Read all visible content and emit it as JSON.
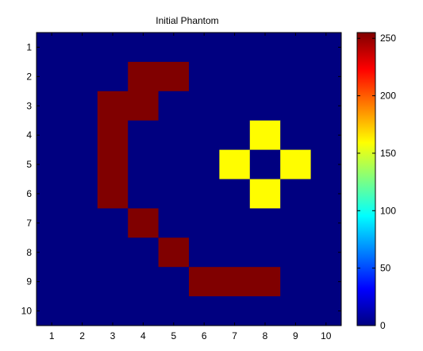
{
  "chart_data": {
    "type": "heatmap",
    "title": "Initial Phantom",
    "x": [
      1,
      2,
      3,
      4,
      5,
      6,
      7,
      8,
      9,
      10
    ],
    "y": [
      1,
      2,
      3,
      4,
      5,
      6,
      7,
      8,
      9,
      10
    ],
    "x_tick_labels": [
      "1",
      "2",
      "3",
      "4",
      "5",
      "6",
      "7",
      "8",
      "9",
      "10"
    ],
    "y_tick_labels": [
      "1",
      "2",
      "3",
      "4",
      "5",
      "6",
      "7",
      "8",
      "9",
      "10"
    ],
    "values": [
      [
        0,
        0,
        0,
        0,
        0,
        0,
        0,
        0,
        0,
        0
      ],
      [
        0,
        0,
        0,
        255,
        255,
        0,
        0,
        0,
        0,
        0
      ],
      [
        0,
        0,
        255,
        255,
        0,
        0,
        0,
        0,
        0,
        0
      ],
      [
        0,
        0,
        255,
        0,
        0,
        0,
        0,
        160,
        0,
        0
      ],
      [
        0,
        0,
        255,
        0,
        0,
        0,
        160,
        0,
        160,
        0
      ],
      [
        0,
        0,
        255,
        0,
        0,
        0,
        0,
        160,
        0,
        0
      ],
      [
        0,
        0,
        0,
        255,
        0,
        0,
        0,
        0,
        0,
        0
      ],
      [
        0,
        0,
        0,
        0,
        255,
        0,
        0,
        0,
        0,
        0
      ],
      [
        0,
        0,
        0,
        0,
        0,
        255,
        255,
        255,
        0,
        0
      ],
      [
        0,
        0,
        0,
        0,
        0,
        0,
        0,
        0,
        0,
        0
      ]
    ],
    "colormap": "jet",
    "clim": [
      0,
      255
    ],
    "colorbar": {
      "ticks": [
        0,
        50,
        100,
        150,
        200,
        250
      ],
      "tick_labels": [
        "0",
        "50",
        "100",
        "150",
        "200",
        "250"
      ],
      "placement": "right"
    },
    "y_direction": "reverse",
    "grid": false
  }
}
